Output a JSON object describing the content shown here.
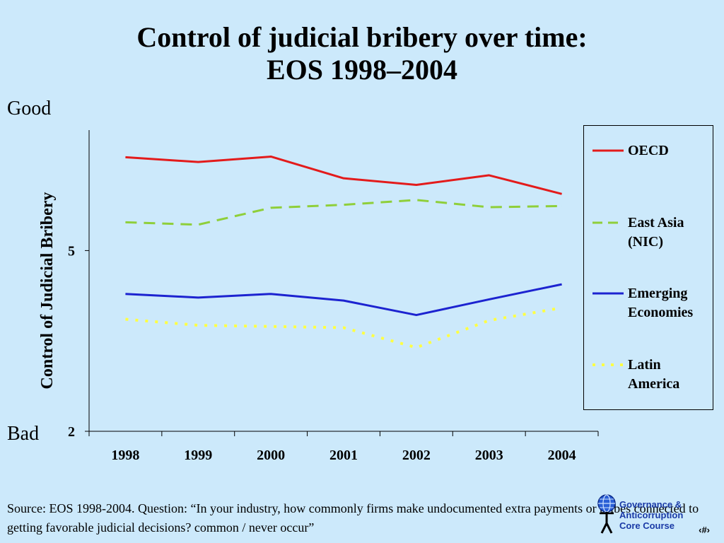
{
  "slide": {
    "title_line1": "Control of judicial bribery over time:",
    "title_line2": "EOS 1998–2004",
    "good_label": "Good",
    "bad_label": "Bad",
    "source": "Source:  EOS 1998-2004. Question: “In your industry, how commonly firms make undocumented extra payments or bribes connected to getting favorable judicial decisions? common / never occur”",
    "logo_line1": "Governance &",
    "logo_line2": "Anticorruption",
    "logo_line3": "Core Course",
    "slide_number": "‹#›"
  },
  "chart_data": {
    "type": "line",
    "ylabel": "Control of Judicial Bribery",
    "ylim": [
      2,
      7
    ],
    "ytick_labels": [
      "2",
      "5"
    ],
    "ytick_values": [
      2,
      5
    ],
    "categories": [
      "1998",
      "1999",
      "2000",
      "2001",
      "2002",
      "2003",
      "2004"
    ],
    "legend_position": "right",
    "series": [
      {
        "name": "OECD",
        "color": "#e31b1b",
        "style": "solid",
        "values": [
          6.55,
          6.47,
          6.56,
          6.2,
          6.09,
          6.25,
          5.94
        ]
      },
      {
        "name": "East Asia (NIC)",
        "color": "#8fcf3a",
        "style": "dashed",
        "values": [
          5.47,
          5.43,
          5.71,
          5.76,
          5.84,
          5.72,
          5.74
        ]
      },
      {
        "name": "Emerging Economies",
        "color": "#1c23d0",
        "style": "solid",
        "values": [
          4.28,
          4.22,
          4.28,
          4.17,
          3.93,
          4.19,
          4.44
        ]
      },
      {
        "name": "Latin America",
        "color": "#ffff44",
        "style": "dotted",
        "values": [
          3.86,
          3.76,
          3.74,
          3.72,
          3.39,
          3.84,
          4.05
        ]
      }
    ]
  }
}
